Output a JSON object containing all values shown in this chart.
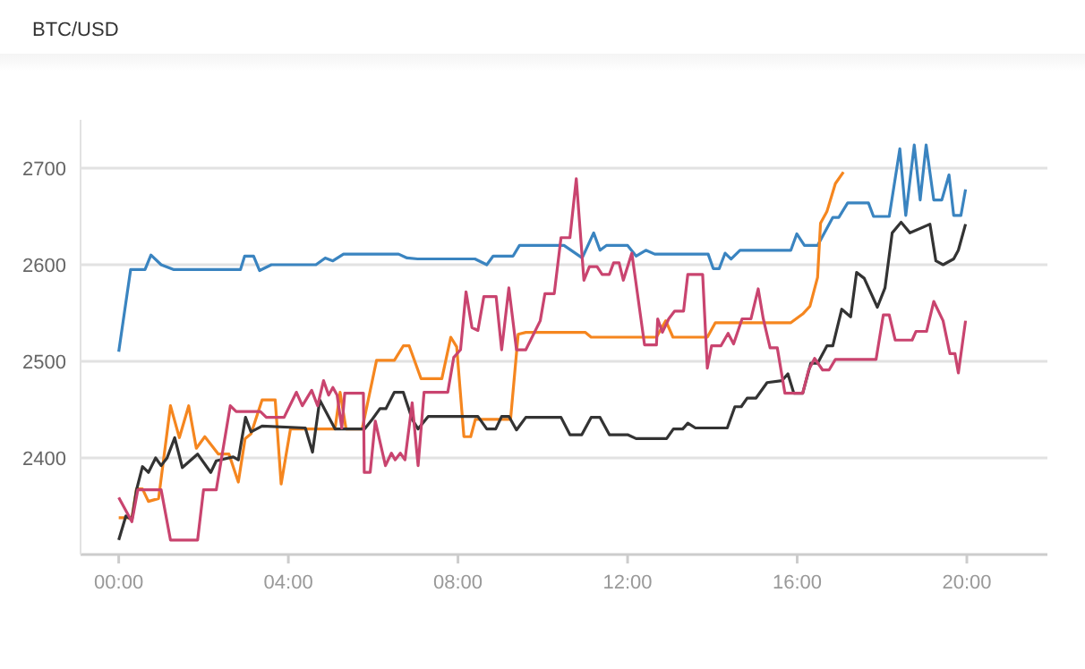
{
  "chart_data": {
    "type": "line",
    "title": "BTC/USD",
    "xlim": [
      -0.9,
      21.9
    ],
    "xticks": [
      {
        "value": 0,
        "label": "00:00"
      },
      {
        "value": 4,
        "label": "04:00"
      },
      {
        "value": 8,
        "label": "08:00"
      },
      {
        "value": 12,
        "label": "12:00"
      },
      {
        "value": 16,
        "label": "16:00"
      },
      {
        "value": 20,
        "label": "20:00"
      }
    ],
    "ylim": [
      2300,
      2750
    ],
    "yticks": [
      2400,
      2500,
      2600,
      2700
    ],
    "grid": "y",
    "marker": "none",
    "line_style": "solid",
    "series": [
      {
        "color": "#3a84c0",
        "x": [
          0,
          0.28,
          0.62,
          0.76,
          1.0,
          1.3,
          2.87,
          2.97,
          3.18,
          3.32,
          3.6,
          4.65,
          4.87,
          5.05,
          5.3,
          6.6,
          6.8,
          7.05,
          8.4,
          8.68,
          8.83,
          9.3,
          9.45,
          10.5,
          10.93,
          11.2,
          11.35,
          11.5,
          12.0,
          12.2,
          12.43,
          12.64,
          13.9,
          14.02,
          14.16,
          14.3,
          14.44,
          14.65,
          15.85,
          15.99,
          16.17,
          16.48,
          16.84,
          16.98,
          17.19,
          17.68,
          17.8,
          18.17,
          18.42,
          18.56,
          18.76,
          18.9,
          19.04,
          19.22,
          19.41,
          19.58,
          19.69,
          19.86,
          19.97
        ],
        "values": [
          2510,
          2595,
          2595,
          2610,
          2600,
          2595,
          2595,
          2609,
          2609,
          2594,
          2600,
          2600,
          2607,
          2604,
          2611,
          2611,
          2607,
          2606,
          2606,
          2600,
          2609,
          2609,
          2620,
          2620,
          2607,
          2633,
          2615,
          2620,
          2620,
          2609,
          2615,
          2611,
          2611,
          2596,
          2596,
          2612,
          2606,
          2615,
          2615,
          2632,
          2620,
          2620,
          2649,
          2649,
          2664,
          2664,
          2650,
          2650,
          2720,
          2651,
          2724,
          2667,
          2724,
          2667,
          2667,
          2693,
          2651,
          2651,
          2678
        ]
      },
      {
        "color": "#f5861f",
        "x": [
          0,
          0.31,
          0.42,
          0.56,
          0.7,
          0.94,
          1.22,
          1.43,
          1.65,
          1.83,
          2.03,
          2.35,
          2.6,
          2.82,
          2.98,
          3.12,
          3.38,
          3.69,
          3.83,
          4.05,
          5.1,
          5.22,
          5.36,
          5.74,
          6.08,
          6.5,
          6.71,
          6.85,
          7.13,
          7.62,
          7.83,
          7.97,
          8.14,
          8.3,
          8.41,
          9.24,
          9.42,
          9.6,
          11.0,
          11.14,
          12.68,
          12.9,
          13.07,
          13.88,
          14.07,
          15.85,
          16.13,
          16.3,
          16.48,
          16.55,
          16.7,
          16.9,
          17.09
        ],
        "values": [
          2338,
          2338,
          2368,
          2368,
          2355,
          2358,
          2454,
          2421,
          2454,
          2410,
          2422,
          2404,
          2404,
          2375,
          2420,
          2425,
          2460,
          2460,
          2373,
          2430,
          2430,
          2468,
          2430,
          2430,
          2501,
          2501,
          2516,
          2516,
          2482,
          2482,
          2525,
          2515,
          2422,
          2422,
          2440,
          2440,
          2528,
          2530,
          2530,
          2525,
          2525,
          2542,
          2525,
          2525,
          2540,
          2540,
          2549,
          2557,
          2587,
          2643,
          2655,
          2684,
          2696
        ]
      },
      {
        "color": "#333333",
        "x": [
          0,
          0.17,
          0.31,
          0.42,
          0.56,
          0.7,
          0.87,
          1.0,
          1.14,
          1.32,
          1.5,
          1.86,
          2.17,
          2.3,
          2.7,
          2.82,
          2.99,
          3.12,
          3.38,
          4.4,
          4.57,
          4.74,
          5.1,
          5.8,
          5.98,
          6.16,
          6.3,
          6.5,
          6.71,
          6.92,
          7.06,
          7.3,
          7.9,
          8.47,
          8.68,
          8.89,
          9.03,
          9.2,
          9.38,
          9.6,
          10.43,
          10.64,
          10.92,
          11.14,
          11.35,
          11.57,
          12.0,
          12.2,
          12.78,
          12.92,
          13.08,
          13.3,
          13.42,
          13.6,
          13.8,
          14.35,
          14.53,
          14.68,
          14.82,
          15.03,
          15.29,
          15.64,
          15.78,
          15.92,
          16.13,
          16.32,
          16.48,
          16.7,
          16.84,
          17.05,
          17.26,
          17.4,
          17.58,
          17.89,
          18.07,
          18.24,
          18.45,
          18.66,
          19.13,
          19.27,
          19.44,
          19.69,
          19.8,
          19.97
        ],
        "values": [
          2315,
          2340,
          2336,
          2367,
          2391,
          2385,
          2400,
          2392,
          2400,
          2421,
          2390,
          2404,
          2385,
          2397,
          2401,
          2398,
          2442,
          2427,
          2433,
          2431,
          2406,
          2460,
          2430,
          2430,
          2440,
          2451,
          2451,
          2468,
          2468,
          2440,
          2430,
          2443,
          2443,
          2443,
          2430,
          2430,
          2443,
          2443,
          2429,
          2442,
          2442,
          2424,
          2424,
          2442,
          2442,
          2424,
          2424,
          2420,
          2420,
          2420,
          2430,
          2430,
          2436,
          2431,
          2431,
          2431,
          2453,
          2453,
          2462,
          2462,
          2478,
          2480,
          2487,
          2467,
          2467,
          2498,
          2498,
          2516,
          2516,
          2554,
          2546,
          2592,
          2586,
          2556,
          2576,
          2633,
          2644,
          2633,
          2642,
          2604,
          2600,
          2606,
          2615,
          2642
        ]
      },
      {
        "color": "#c9446f",
        "x": [
          0,
          0.31,
          0.45,
          1.0,
          1.22,
          1.86,
          2.0,
          2.3,
          2.63,
          2.77,
          3.34,
          3.48,
          3.9,
          4.19,
          4.33,
          4.55,
          4.69,
          4.83,
          4.95,
          5.05,
          5.15,
          5.26,
          5.33,
          5.77,
          5.79,
          5.93,
          6.05,
          6.29,
          6.43,
          6.52,
          6.64,
          6.75,
          6.92,
          7.06,
          7.2,
          7.76,
          7.9,
          8.06,
          8.19,
          8.33,
          8.47,
          8.61,
          8.9,
          9.03,
          9.2,
          9.38,
          9.6,
          9.94,
          10.05,
          10.27,
          10.43,
          10.64,
          10.79,
          10.97,
          11.1,
          11.28,
          11.4,
          11.57,
          11.67,
          11.8,
          11.9,
          12.1,
          12.4,
          12.68,
          12.71,
          12.82,
          12.97,
          13.11,
          13.32,
          13.42,
          13.77,
          13.88,
          13.98,
          14.2,
          14.37,
          14.5,
          14.7,
          14.91,
          15.08,
          15.2,
          15.36,
          15.53,
          15.71,
          16.13,
          16.27,
          16.41,
          16.6,
          16.75,
          16.9,
          17.86,
          18.03,
          18.17,
          18.31,
          18.71,
          18.8,
          19.05,
          19.22,
          19.44,
          19.6,
          19.72,
          19.8,
          19.97
        ],
        "values": [
          2359,
          2334,
          2367,
          2367,
          2315,
          2315,
          2367,
          2367,
          2454,
          2448,
          2448,
          2442,
          2442,
          2468,
          2454,
          2470,
          2454,
          2480,
          2465,
          2473,
          2465,
          2431,
          2467,
          2467,
          2385,
          2385,
          2438,
          2392,
          2405,
          2398,
          2405,
          2398,
          2457,
          2392,
          2468,
          2468,
          2504,
          2512,
          2572,
          2535,
          2532,
          2567,
          2567,
          2512,
          2576,
          2512,
          2512,
          2542,
          2570,
          2570,
          2628,
          2628,
          2689,
          2584,
          2598,
          2598,
          2590,
          2590,
          2602,
          2602,
          2584,
          2612,
          2517,
          2517,
          2544,
          2530,
          2544,
          2552,
          2552,
          2590,
          2590,
          2493,
          2516,
          2516,
          2529,
          2518,
          2544,
          2544,
          2575,
          2544,
          2514,
          2514,
          2467,
          2467,
          2491,
          2503,
          2491,
          2491,
          2502,
          2502,
          2548,
          2548,
          2522,
          2522,
          2531,
          2531,
          2562,
          2542,
          2508,
          2508,
          2488,
          2542
        ]
      }
    ]
  }
}
